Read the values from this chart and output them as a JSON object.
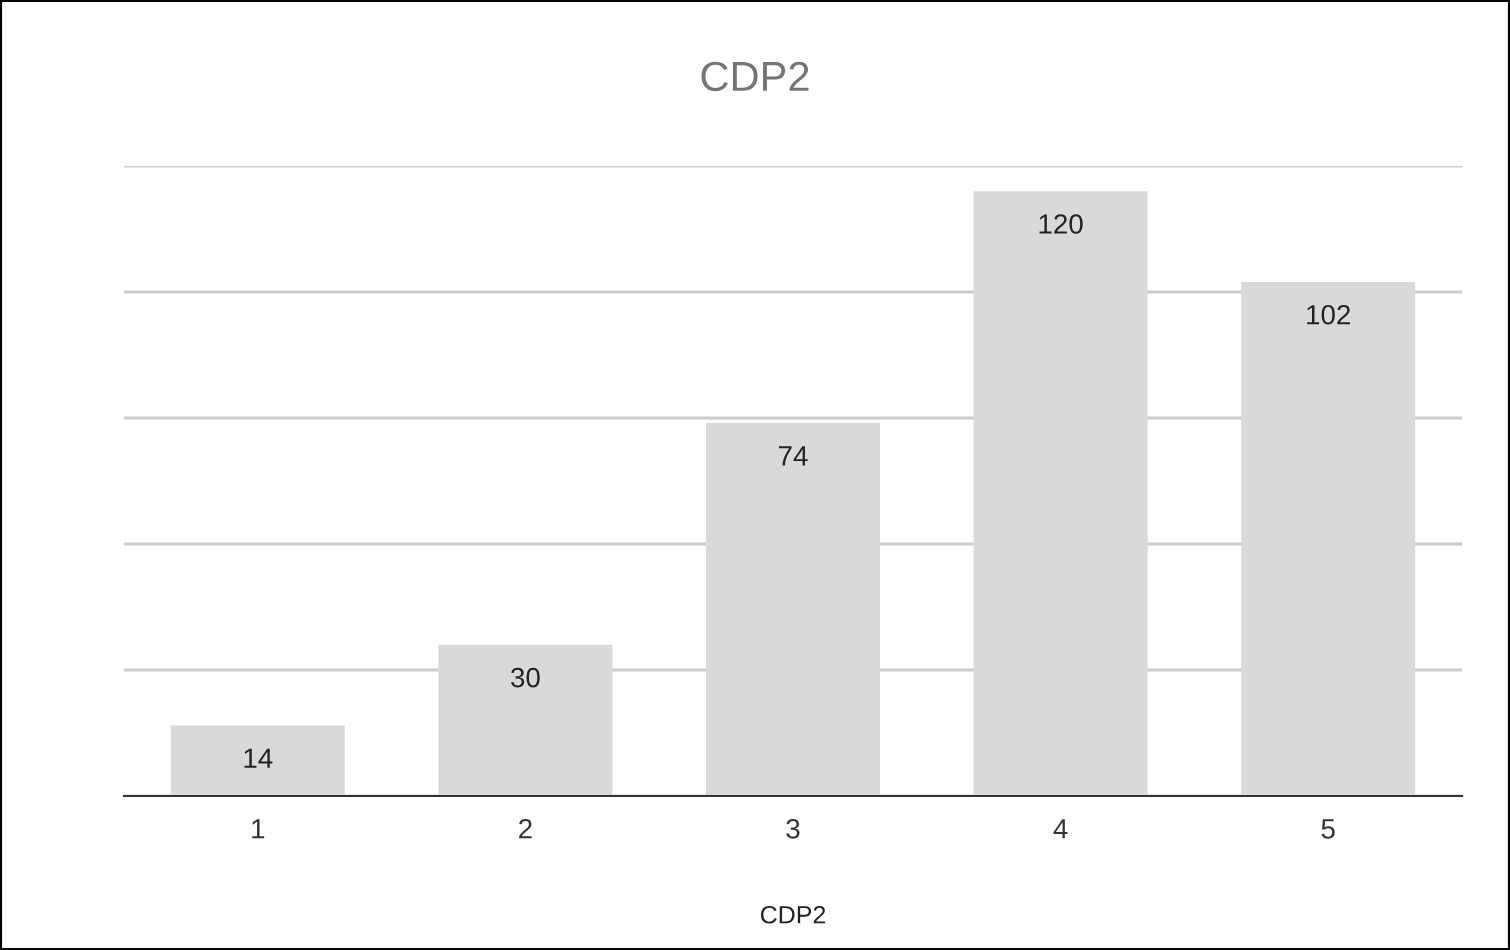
{
  "chart_data": {
    "type": "bar",
    "title": "CDP2",
    "xlabel": "CDP2",
    "categories": [
      "1",
      "2",
      "3",
      "4",
      "5"
    ],
    "values": [
      14,
      30,
      74,
      120,
      102
    ],
    "color": "#d9d9d9",
    "ylim": [
      0,
      125
    ],
    "yticks": [
      {
        "value": 0,
        "label": null
      },
      {
        "value": 25,
        "label": null
      },
      {
        "value": 50,
        "label": null
      },
      {
        "value": 75,
        "label": null
      },
      {
        "value": 100,
        "label": null
      },
      {
        "value": 125,
        "label": null
      }
    ],
    "tick_labels": "x",
    "grid": "y",
    "legend": false,
    "data_labels": true
  }
}
